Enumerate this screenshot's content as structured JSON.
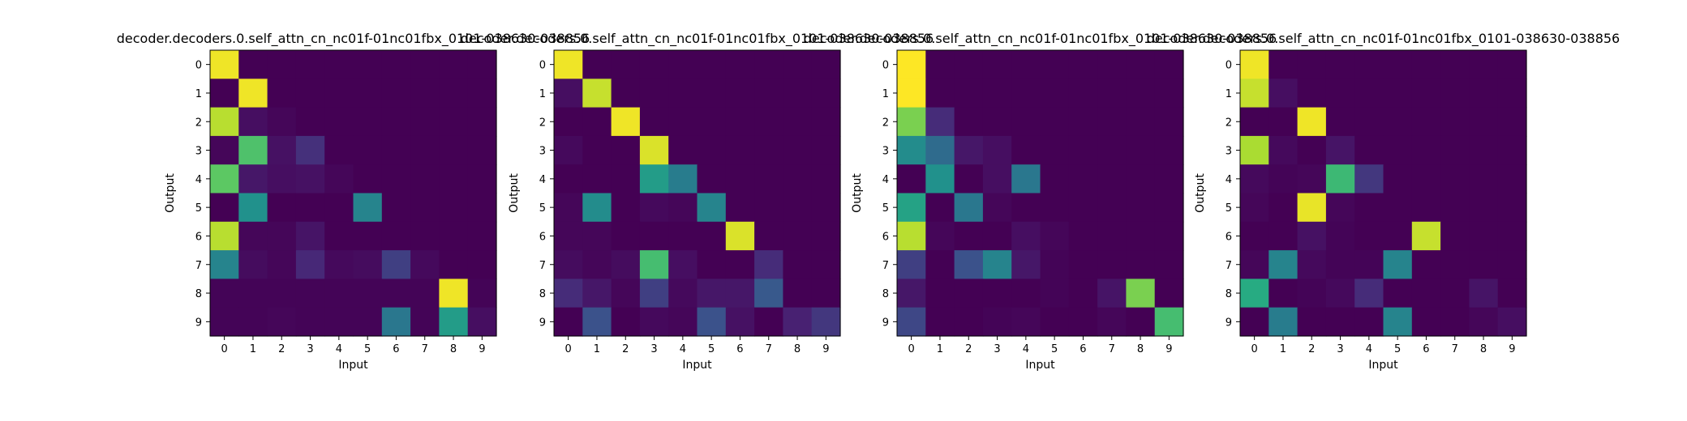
{
  "chart_data": [
    {
      "type": "heatmap",
      "title": "decoder.decoders.0.self_attn_cn_nc01f-01nc01fbx_0101-038630-038856",
      "xlabel": "Input",
      "ylabel": "Output",
      "x_ticks": [
        "0",
        "1",
        "2",
        "3",
        "4",
        "5",
        "6",
        "7",
        "8",
        "9"
      ],
      "y_ticks": [
        "0",
        "1",
        "2",
        "3",
        "4",
        "5",
        "6",
        "7",
        "8",
        "9"
      ],
      "colormap": "viridis",
      "vmin": 0,
      "vmax": 1,
      "values": [
        [
          0.98,
          0.0,
          0.0,
          0.0,
          0.0,
          0.0,
          0.0,
          0.0,
          0.0,
          0.0
        ],
        [
          0.0,
          0.98,
          0.0,
          0.0,
          0.0,
          0.0,
          0.0,
          0.0,
          0.0,
          0.0
        ],
        [
          0.9,
          0.05,
          0.02,
          0.0,
          0.0,
          0.0,
          0.0,
          0.0,
          0.0,
          0.0
        ],
        [
          0.02,
          0.72,
          0.06,
          0.16,
          0.0,
          0.0,
          0.0,
          0.0,
          0.0,
          0.0
        ],
        [
          0.75,
          0.08,
          0.05,
          0.06,
          0.02,
          0.0,
          0.0,
          0.0,
          0.0,
          0.0
        ],
        [
          0.0,
          0.5,
          0.0,
          0.0,
          0.0,
          0.45,
          0.0,
          0.0,
          0.0,
          0.0
        ],
        [
          0.9,
          0.02,
          0.02,
          0.07,
          0.0,
          0.0,
          0.0,
          0.0,
          0.0,
          0.0
        ],
        [
          0.45,
          0.04,
          0.02,
          0.14,
          0.03,
          0.04,
          0.2,
          0.03,
          0.0,
          0.0
        ],
        [
          0.01,
          0.01,
          0.01,
          0.01,
          0.01,
          0.01,
          0.01,
          0.01,
          0.98,
          0.01
        ],
        [
          0.01,
          0.01,
          0.02,
          0.01,
          0.01,
          0.01,
          0.4,
          0.01,
          0.55,
          0.05
        ]
      ]
    },
    {
      "type": "heatmap",
      "title": "decoder.decoders.0.self_attn_cn_nc01f-01nc01fbx_0101-038630-038856",
      "xlabel": "Input",
      "ylabel": "Output",
      "x_ticks": [
        "0",
        "1",
        "2",
        "3",
        "4",
        "5",
        "6",
        "7",
        "8",
        "9"
      ],
      "y_ticks": [
        "0",
        "1",
        "2",
        "3",
        "4",
        "5",
        "6",
        "7",
        "8",
        "9"
      ],
      "colormap": "viridis",
      "vmin": 0,
      "vmax": 1,
      "values": [
        [
          0.98,
          0.0,
          0.0,
          0.0,
          0.0,
          0.0,
          0.0,
          0.0,
          0.0,
          0.0
        ],
        [
          0.05,
          0.92,
          0.0,
          0.0,
          0.0,
          0.0,
          0.0,
          0.0,
          0.0,
          0.0
        ],
        [
          0.0,
          0.0,
          0.98,
          0.0,
          0.0,
          0.0,
          0.0,
          0.0,
          0.0,
          0.0
        ],
        [
          0.03,
          0.0,
          0.0,
          0.95,
          0.0,
          0.0,
          0.0,
          0.0,
          0.0,
          0.0
        ],
        [
          0.0,
          0.0,
          0.0,
          0.55,
          0.42,
          0.0,
          0.0,
          0.0,
          0.0,
          0.0
        ],
        [
          0.02,
          0.48,
          0.0,
          0.03,
          0.02,
          0.45,
          0.0,
          0.0,
          0.0,
          0.0
        ],
        [
          0.02,
          0.02,
          0.0,
          0.0,
          0.0,
          0.0,
          0.95,
          0.0,
          0.0,
          0.0
        ],
        [
          0.04,
          0.02,
          0.04,
          0.7,
          0.05,
          0.0,
          0.0,
          0.15,
          0.0,
          0.0
        ],
        [
          0.15,
          0.08,
          0.02,
          0.2,
          0.03,
          0.08,
          0.08,
          0.28,
          0.0,
          0.0
        ],
        [
          0.0,
          0.25,
          0.0,
          0.03,
          0.02,
          0.25,
          0.06,
          0.0,
          0.12,
          0.18
        ]
      ]
    },
    {
      "type": "heatmap",
      "title": "decoder.decoders.0.self_attn_cn_nc01f-01nc01fbx_0101-038630-038856",
      "xlabel": "Input",
      "ylabel": "Output",
      "x_ticks": [
        "0",
        "1",
        "2",
        "3",
        "4",
        "5",
        "6",
        "7",
        "8",
        "9"
      ],
      "y_ticks": [
        "0",
        "1",
        "2",
        "3",
        "4",
        "5",
        "6",
        "7",
        "8",
        "9"
      ],
      "colormap": "viridis",
      "vmin": 0,
      "vmax": 1,
      "values": [
        [
          1.0,
          0.0,
          0.0,
          0.0,
          0.0,
          0.0,
          0.0,
          0.0,
          0.0,
          0.0
        ],
        [
          1.0,
          0.0,
          0.0,
          0.0,
          0.0,
          0.0,
          0.0,
          0.0,
          0.0,
          0.0
        ],
        [
          0.8,
          0.15,
          0.0,
          0.0,
          0.0,
          0.0,
          0.0,
          0.0,
          0.0,
          0.0
        ],
        [
          0.48,
          0.35,
          0.08,
          0.05,
          0.0,
          0.0,
          0.0,
          0.0,
          0.0,
          0.0
        ],
        [
          0.0,
          0.5,
          0.0,
          0.05,
          0.4,
          0.0,
          0.0,
          0.0,
          0.0,
          0.0
        ],
        [
          0.58,
          0.0,
          0.4,
          0.02,
          0.0,
          0.0,
          0.0,
          0.0,
          0.0,
          0.0
        ],
        [
          0.9,
          0.02,
          0.0,
          0.0,
          0.05,
          0.02,
          0.0,
          0.0,
          0.0,
          0.0
        ],
        [
          0.2,
          0.0,
          0.25,
          0.45,
          0.08,
          0.01,
          0.0,
          0.0,
          0.0,
          0.0
        ],
        [
          0.08,
          0.0,
          0.0,
          0.0,
          0.0,
          0.01,
          0.0,
          0.07,
          0.8,
          0.0
        ],
        [
          0.22,
          0.0,
          0.0,
          0.01,
          0.02,
          0.0,
          0.0,
          0.02,
          0.0,
          0.7
        ]
      ]
    },
    {
      "type": "heatmap",
      "title": "decoder.decoders.0.self_attn_cn_nc01f-01nc01fbx_0101-038630-038856",
      "xlabel": "Input",
      "ylabel": "Output",
      "x_ticks": [
        "0",
        "1",
        "2",
        "3",
        "4",
        "5",
        "6",
        "7",
        "8",
        "9"
      ],
      "y_ticks": [
        "0",
        "1",
        "2",
        "3",
        "4",
        "5",
        "6",
        "7",
        "8",
        "9"
      ],
      "colormap": "viridis",
      "vmin": 0,
      "vmax": 1,
      "values": [
        [
          0.98,
          0.0,
          0.0,
          0.0,
          0.0,
          0.0,
          0.0,
          0.0,
          0.0,
          0.0
        ],
        [
          0.92,
          0.05,
          0.0,
          0.0,
          0.0,
          0.0,
          0.0,
          0.0,
          0.0,
          0.0
        ],
        [
          0.0,
          0.0,
          0.98,
          0.0,
          0.0,
          0.0,
          0.0,
          0.0,
          0.0,
          0.0
        ],
        [
          0.88,
          0.03,
          0.0,
          0.07,
          0.0,
          0.0,
          0.0,
          0.0,
          0.0,
          0.0
        ],
        [
          0.03,
          0.01,
          0.02,
          0.68,
          0.18,
          0.0,
          0.0,
          0.0,
          0.0,
          0.0
        ],
        [
          0.02,
          0.0,
          0.97,
          0.02,
          0.0,
          0.0,
          0.0,
          0.0,
          0.0,
          0.0
        ],
        [
          0.0,
          0.0,
          0.06,
          0.01,
          0.0,
          0.0,
          0.92,
          0.0,
          0.0,
          0.0
        ],
        [
          0.02,
          0.45,
          0.03,
          0.01,
          0.01,
          0.45,
          0.0,
          0.0,
          0.0,
          0.0
        ],
        [
          0.62,
          0.0,
          0.01,
          0.03,
          0.15,
          0.0,
          0.0,
          0.0,
          0.07,
          0.0
        ],
        [
          0.0,
          0.42,
          0.0,
          0.0,
          0.0,
          0.45,
          0.0,
          0.0,
          0.02,
          0.05
        ]
      ]
    }
  ]
}
